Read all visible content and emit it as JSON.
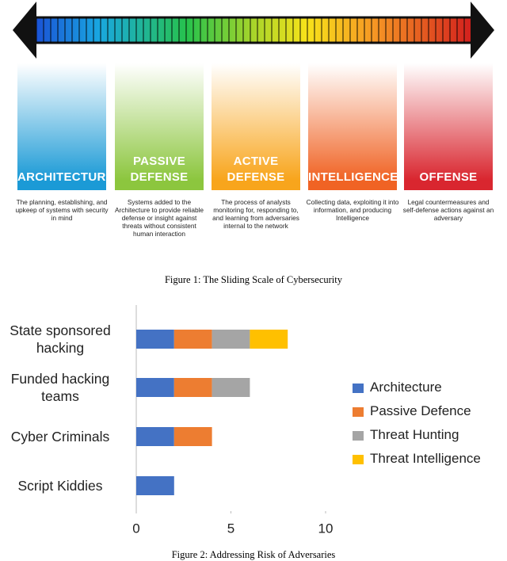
{
  "figure1": {
    "columns": [
      {
        "title": "ARCHITECTURE",
        "description": "The planning, establishing, and upkeep of systems with security in mind",
        "color": "#1b9ad6"
      },
      {
        "title": "PASSIVE DEFENSE",
        "description": "Systems added to the Architecture to provide reliable defense or insight against threats without consistent human interaction",
        "color": "#8cc63e"
      },
      {
        "title": "ACTIVE DEFENSE",
        "description": "The process of analysts monitoring for, responding to, and learning from adversaries internal to the network",
        "color": "#f8a51c"
      },
      {
        "title": "INTELLIGENCE",
        "description": "Collecting data, exploiting it into information, and producing Intelligence",
        "color": "#f06324"
      },
      {
        "title": "OFFENSE",
        "description": "Legal countermeasures and self-defense actions against an adversary",
        "color": "#d9262f"
      }
    ],
    "caption": "Figure 1: The Sliding Scale of Cybersecurity"
  },
  "chart_data": {
    "type": "bar",
    "orientation": "horizontal",
    "stacked": true,
    "caption": "Figure 2: Addressing Risk of Adversaries",
    "categories": [
      "State sponsored hacking",
      "Funded hacking teams",
      "Cyber Criminals",
      "Script Kiddies"
    ],
    "series": [
      {
        "name": "Architecture",
        "color": "#4472c4",
        "values": [
          2,
          2,
          2,
          2
        ]
      },
      {
        "name": "Passive Defence",
        "color": "#ed7d31",
        "values": [
          2,
          2,
          2,
          null
        ]
      },
      {
        "name": "Threat Hunting",
        "color": "#a5a5a5",
        "values": [
          2,
          2,
          null,
          null
        ]
      },
      {
        "name": "Threat Intelligence",
        "color": "#ffc000",
        "values": [
          2,
          null,
          null,
          null
        ]
      }
    ],
    "xlim": [
      0,
      10
    ],
    "xticks": [
      0,
      5,
      10
    ],
    "grid": false,
    "legend": "right"
  }
}
